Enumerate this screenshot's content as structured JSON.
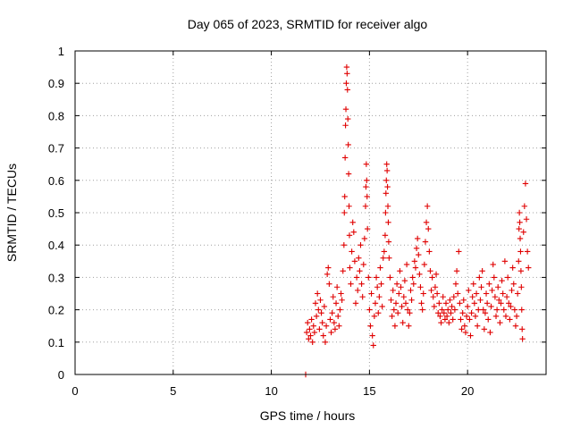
{
  "chart_data": {
    "type": "scatter",
    "title": "Day 065 of 2023, SRMTID for receiver algo",
    "xlabel": "GPS time / hours",
    "ylabel": "SRMTID / TECUs",
    "xlim": [
      0,
      24
    ],
    "ylim": [
      0,
      1
    ],
    "xticks": [
      0,
      5,
      10,
      15,
      20
    ],
    "xtick_labels": [
      "0",
      "5",
      "10",
      "15",
      "20"
    ],
    "yticks": [
      0,
      0.1,
      0.2,
      0.3,
      0.4,
      0.5,
      0.6,
      0.7,
      0.8,
      0.9,
      1
    ],
    "ytick_labels": [
      "0",
      "0.1",
      "0.2",
      "0.3",
      "0.4",
      "0.5",
      "0.6",
      "0.7",
      "0.8",
      "0.9",
      "1"
    ],
    "grid": true,
    "marker": "+",
    "color": "#e00000",
    "series": [
      {
        "name": "SRMTID",
        "points": [
          [
            11.75,
            0.0
          ],
          [
            11.8,
            0.13
          ],
          [
            11.85,
            0.16
          ],
          [
            11.9,
            0.11
          ],
          [
            11.95,
            0.14
          ],
          [
            12.0,
            0.12
          ],
          [
            12.05,
            0.17
          ],
          [
            12.1,
            0.1
          ],
          [
            12.15,
            0.15
          ],
          [
            12.2,
            0.13
          ],
          [
            12.25,
            0.22
          ],
          [
            12.3,
            0.18
          ],
          [
            12.35,
            0.25
          ],
          [
            12.4,
            0.2
          ],
          [
            12.45,
            0.14
          ],
          [
            12.5,
            0.23
          ],
          [
            12.55,
            0.19
          ],
          [
            12.6,
            0.16
          ],
          [
            12.65,
            0.12
          ],
          [
            12.7,
            0.21
          ],
          [
            12.75,
            0.1
          ],
          [
            12.8,
            0.15
          ],
          [
            12.85,
            0.31
          ],
          [
            12.9,
            0.33
          ],
          [
            12.95,
            0.28
          ],
          [
            13.0,
            0.17
          ],
          [
            13.05,
            0.13
          ],
          [
            13.1,
            0.19
          ],
          [
            13.15,
            0.24
          ],
          [
            13.2,
            0.16
          ],
          [
            13.25,
            0.14
          ],
          [
            13.3,
            0.22
          ],
          [
            13.35,
            0.27
          ],
          [
            13.4,
            0.18
          ],
          [
            13.45,
            0.15
          ],
          [
            13.5,
            0.2
          ],
          [
            13.55,
            0.25
          ],
          [
            13.6,
            0.23
          ],
          [
            13.65,
            0.32
          ],
          [
            13.7,
            0.4
          ],
          [
            13.72,
            0.5
          ],
          [
            13.74,
            0.55
          ],
          [
            13.76,
            0.67
          ],
          [
            13.78,
            0.77
          ],
          [
            13.8,
            0.82
          ],
          [
            13.82,
            0.9
          ],
          [
            13.84,
            0.95
          ],
          [
            13.86,
            0.93
          ],
          [
            13.88,
            0.88
          ],
          [
            13.9,
            0.79
          ],
          [
            13.92,
            0.71
          ],
          [
            13.94,
            0.62
          ],
          [
            13.96,
            0.52
          ],
          [
            13.98,
            0.43
          ],
          [
            14.0,
            0.33
          ],
          [
            14.05,
            0.28
          ],
          [
            14.1,
            0.38
          ],
          [
            14.15,
            0.47
          ],
          [
            14.2,
            0.44
          ],
          [
            14.25,
            0.35
          ],
          [
            14.3,
            0.22
          ],
          [
            14.35,
            0.3
          ],
          [
            14.4,
            0.26
          ],
          [
            14.45,
            0.36
          ],
          [
            14.5,
            0.32
          ],
          [
            14.55,
            0.4
          ],
          [
            14.6,
            0.28
          ],
          [
            14.65,
            0.24
          ],
          [
            14.7,
            0.34
          ],
          [
            14.75,
            0.42
          ],
          [
            14.8,
            0.52
          ],
          [
            14.82,
            0.58
          ],
          [
            14.84,
            0.65
          ],
          [
            14.86,
            0.6
          ],
          [
            14.88,
            0.55
          ],
          [
            14.9,
            0.45
          ],
          [
            14.95,
            0.3
          ],
          [
            15.0,
            0.2
          ],
          [
            15.05,
            0.15
          ],
          [
            15.1,
            0.25
          ],
          [
            15.15,
            0.12
          ],
          [
            15.2,
            0.09
          ],
          [
            15.25,
            0.18
          ],
          [
            15.3,
            0.22
          ],
          [
            15.35,
            0.3
          ],
          [
            15.4,
            0.27
          ],
          [
            15.45,
            0.19
          ],
          [
            15.5,
            0.24
          ],
          [
            15.55,
            0.33
          ],
          [
            15.6,
            0.28
          ],
          [
            15.65,
            0.21
          ],
          [
            15.7,
            0.36
          ],
          [
            15.75,
            0.38
          ],
          [
            15.8,
            0.43
          ],
          [
            15.82,
            0.5
          ],
          [
            15.84,
            0.56
          ],
          [
            15.86,
            0.6
          ],
          [
            15.88,
            0.65
          ],
          [
            15.9,
            0.63
          ],
          [
            15.92,
            0.58
          ],
          [
            15.94,
            0.52
          ],
          [
            15.96,
            0.47
          ],
          [
            15.98,
            0.41
          ],
          [
            16.0,
            0.36
          ],
          [
            16.05,
            0.3
          ],
          [
            16.1,
            0.23
          ],
          [
            16.15,
            0.18
          ],
          [
            16.2,
            0.26
          ],
          [
            16.25,
            0.2
          ],
          [
            16.3,
            0.15
          ],
          [
            16.35,
            0.22
          ],
          [
            16.4,
            0.28
          ],
          [
            16.45,
            0.19
          ],
          [
            16.5,
            0.25
          ],
          [
            16.55,
            0.32
          ],
          [
            16.6,
            0.27
          ],
          [
            16.65,
            0.21
          ],
          [
            16.7,
            0.16
          ],
          [
            16.75,
            0.24
          ],
          [
            16.8,
            0.29
          ],
          [
            16.85,
            0.22
          ],
          [
            16.9,
            0.34
          ],
          [
            16.95,
            0.2
          ],
          [
            17.0,
            0.15
          ],
          [
            17.05,
            0.19
          ],
          [
            17.1,
            0.26
          ],
          [
            17.15,
            0.23
          ],
          [
            17.2,
            0.3
          ],
          [
            17.25,
            0.28
          ],
          [
            17.3,
            0.35
          ],
          [
            17.35,
            0.33
          ],
          [
            17.4,
            0.39
          ],
          [
            17.45,
            0.42
          ],
          [
            17.5,
            0.37
          ],
          [
            17.55,
            0.31
          ],
          [
            17.6,
            0.27
          ],
          [
            17.65,
            0.22
          ],
          [
            17.7,
            0.2
          ],
          [
            17.75,
            0.25
          ],
          [
            17.8,
            0.34
          ],
          [
            17.85,
            0.41
          ],
          [
            17.9,
            0.47
          ],
          [
            17.95,
            0.52
          ],
          [
            18.0,
            0.45
          ],
          [
            18.05,
            0.38
          ],
          [
            18.1,
            0.32
          ],
          [
            18.15,
            0.26
          ],
          [
            18.2,
            0.3
          ],
          [
            18.25,
            0.24
          ],
          [
            18.3,
            0.21
          ],
          [
            18.35,
            0.27
          ],
          [
            18.4,
            0.31
          ],
          [
            18.45,
            0.25
          ],
          [
            18.5,
            0.19
          ],
          [
            18.55,
            0.22
          ],
          [
            18.6,
            0.18
          ],
          [
            18.65,
            0.16
          ],
          [
            18.7,
            0.2
          ],
          [
            18.75,
            0.24
          ],
          [
            18.8,
            0.19
          ],
          [
            18.85,
            0.17
          ],
          [
            18.9,
            0.22
          ],
          [
            18.95,
            0.18
          ],
          [
            19.0,
            0.2
          ],
          [
            19.05,
            0.16
          ],
          [
            19.1,
            0.23
          ],
          [
            19.15,
            0.19
          ],
          [
            19.2,
            0.21
          ],
          [
            19.25,
            0.17
          ],
          [
            19.3,
            0.24
          ],
          [
            19.35,
            0.2
          ],
          [
            19.4,
            0.28
          ],
          [
            19.45,
            0.32
          ],
          [
            19.5,
            0.25
          ],
          [
            19.55,
            0.38
          ],
          [
            19.6,
            0.22
          ],
          [
            19.65,
            0.17
          ],
          [
            19.7,
            0.14
          ],
          [
            19.75,
            0.19
          ],
          [
            19.8,
            0.23
          ],
          [
            19.85,
            0.15
          ],
          [
            19.9,
            0.13
          ],
          [
            19.95,
            0.18
          ],
          [
            20.0,
            0.21
          ],
          [
            20.05,
            0.26
          ],
          [
            20.1,
            0.17
          ],
          [
            20.15,
            0.12
          ],
          [
            20.2,
            0.19
          ],
          [
            20.25,
            0.24
          ],
          [
            20.3,
            0.28
          ],
          [
            20.35,
            0.22
          ],
          [
            20.4,
            0.18
          ],
          [
            20.45,
            0.25
          ],
          [
            20.5,
            0.15
          ],
          [
            20.55,
            0.2
          ],
          [
            20.6,
            0.3
          ],
          [
            20.65,
            0.23
          ],
          [
            20.7,
            0.27
          ],
          [
            20.75,
            0.32
          ],
          [
            20.8,
            0.2
          ],
          [
            20.85,
            0.14
          ],
          [
            20.9,
            0.19
          ],
          [
            20.95,
            0.25
          ],
          [
            21.0,
            0.22
          ],
          [
            21.05,
            0.17
          ],
          [
            21.1,
            0.28
          ],
          [
            21.15,
            0.13
          ],
          [
            21.2,
            0.21
          ],
          [
            21.25,
            0.26
          ],
          [
            21.3,
            0.34
          ],
          [
            21.35,
            0.3
          ],
          [
            21.4,
            0.24
          ],
          [
            21.45,
            0.18
          ],
          [
            21.5,
            0.2
          ],
          [
            21.55,
            0.27
          ],
          [
            21.6,
            0.23
          ],
          [
            21.65,
            0.16
          ],
          [
            21.7,
            0.22
          ],
          [
            21.75,
            0.29
          ],
          [
            21.8,
            0.25
          ],
          [
            21.85,
            0.2
          ],
          [
            21.9,
            0.35
          ],
          [
            21.95,
            0.18
          ],
          [
            22.0,
            0.24
          ],
          [
            22.05,
            0.3
          ],
          [
            22.1,
            0.22
          ],
          [
            22.15,
            0.17
          ],
          [
            22.2,
            0.21
          ],
          [
            22.25,
            0.26
          ],
          [
            22.3,
            0.33
          ],
          [
            22.35,
            0.28
          ],
          [
            22.4,
            0.2
          ],
          [
            22.45,
            0.15
          ],
          [
            22.5,
            0.18
          ],
          [
            22.55,
            0.25
          ],
          [
            22.6,
            0.35
          ],
          [
            22.62,
            0.45
          ],
          [
            22.64,
            0.5
          ],
          [
            22.66,
            0.47
          ],
          [
            22.68,
            0.42
          ],
          [
            22.7,
            0.38
          ],
          [
            22.72,
            0.32
          ],
          [
            22.74,
            0.27
          ],
          [
            22.76,
            0.2
          ],
          [
            22.78,
            0.14
          ],
          [
            22.8,
            0.11
          ],
          [
            22.85,
            0.44
          ],
          [
            22.9,
            0.52
          ],
          [
            22.95,
            0.59
          ],
          [
            23.0,
            0.48
          ],
          [
            23.05,
            0.38
          ],
          [
            23.1,
            0.33
          ]
        ]
      }
    ]
  }
}
